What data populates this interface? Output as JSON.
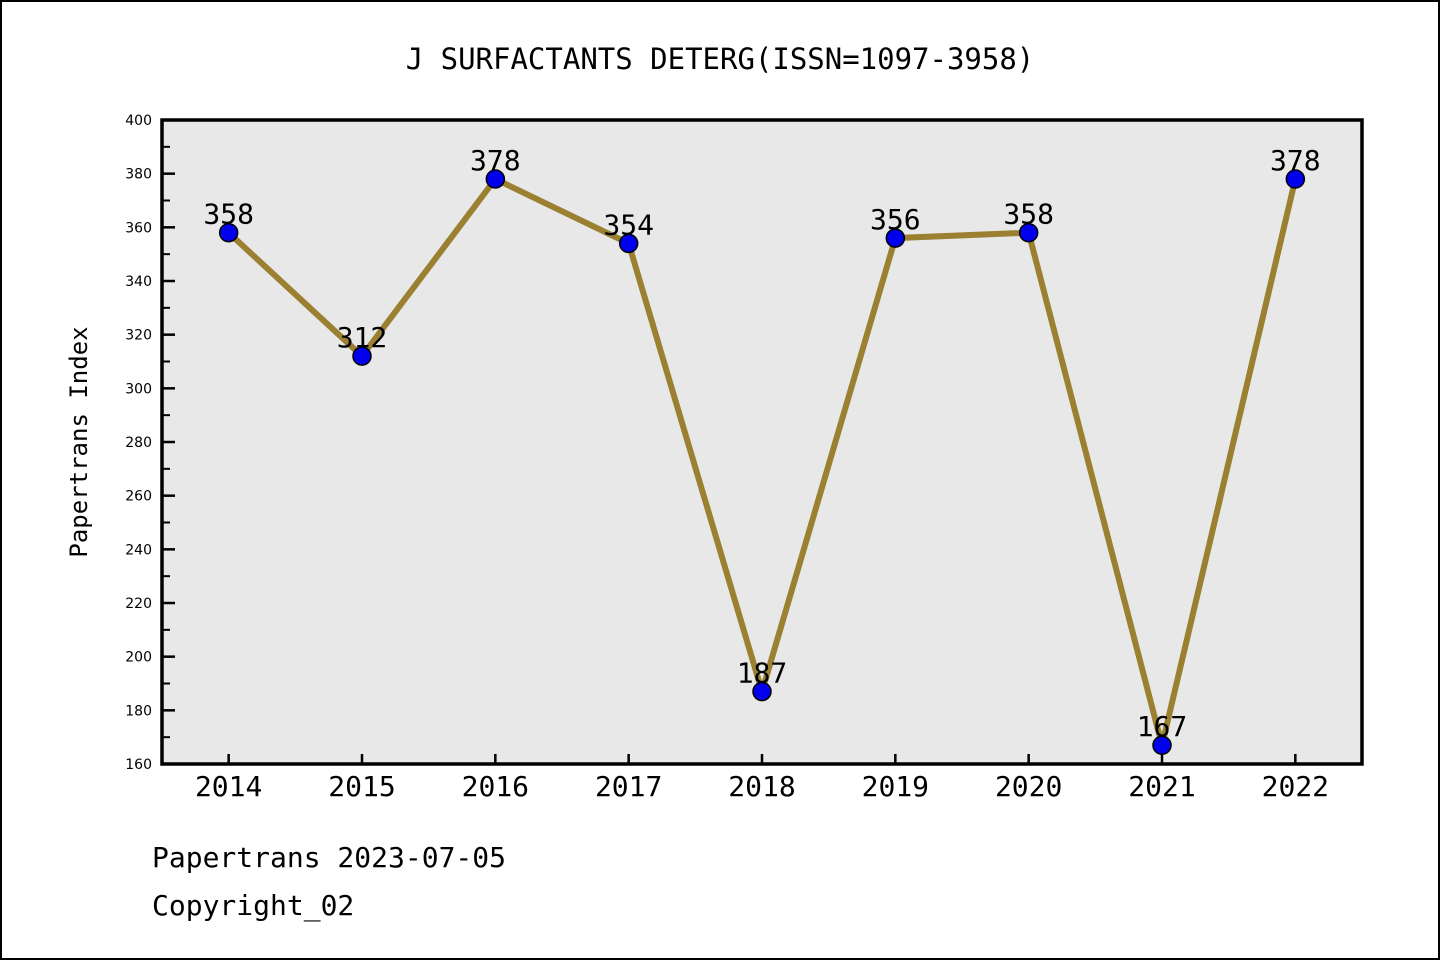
{
  "chart": {
    "title": "J SURFACTANTS DETERG(ISSN=1097-3958)",
    "ylabel": "Papertrans Index"
  },
  "footer": {
    "line1": "Papertrans 2023-07-05",
    "line2": "Copyright_02"
  },
  "chart_data": {
    "type": "line",
    "title": "J SURFACTANTS DETERG(ISSN=1097-3958)",
    "xlabel": "",
    "ylabel": "Papertrans Index",
    "x": [
      2014,
      2015,
      2016,
      2017,
      2018,
      2019,
      2020,
      2021,
      2022
    ],
    "values": [
      358,
      312,
      378,
      354,
      187,
      356,
      358,
      167,
      378
    ],
    "point_labels": [
      "358",
      "312",
      "378",
      "354",
      "187",
      "356",
      "358",
      "167",
      "378"
    ],
    "xtick_labels": [
      "2014",
      "2015",
      "2016",
      "2017",
      "2018",
      "2019",
      "2020",
      "2021",
      "2022"
    ],
    "xlim": [
      2013.5,
      2022.5
    ],
    "ylim": [
      160,
      400
    ],
    "ytick_major_step": 20,
    "ytick_minor_step": 10,
    "grid": false,
    "legend": null,
    "colors": {
      "line": "#9a8030",
      "marker": "#0000ee",
      "marker_edge": "#000000",
      "plot_bg": "#e8e8e8",
      "axis": "#000000",
      "text": "#000000"
    }
  }
}
